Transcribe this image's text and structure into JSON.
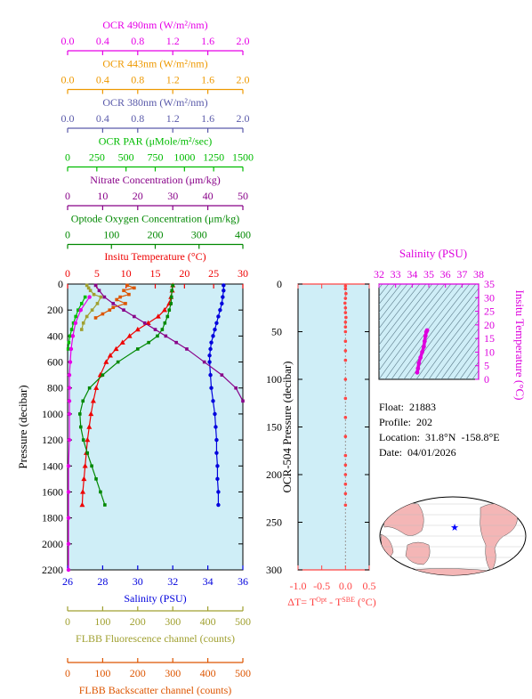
{
  "colors": {
    "panel_bg": "#cfeef7",
    "ocr490": "#e600e6",
    "ocr443": "#ee9900",
    "ocr380": "#5a5aaa",
    "par": "#00bb00",
    "nitrate": "#880088",
    "oxygen": "#008800",
    "temperature": "#ee0000",
    "salinity": "#0000dd",
    "flbb_fluor": "#a0a030",
    "flbb_backscatter": "#dd5500",
    "ts_axis": "#dd00dd",
    "delta_t": "#ff4444",
    "land": "#f4b6b6",
    "ocean": "#ffffff",
    "float_marker": "#0000ff"
  },
  "info": {
    "float": "Float:  21883",
    "profile": "Profile:  202",
    "location": "Location:  31.8°N  -158.8°E",
    "date": "Date:  04/01/2026"
  },
  "chart_data": [
    {
      "type": "line",
      "panel": "main-profile",
      "ylabel": "Pressure (decibar)",
      "ylim": [
        2200,
        0
      ],
      "yticks": [
        0,
        200,
        400,
        600,
        800,
        1000,
        1200,
        1400,
        1600,
        1800,
        2000,
        2200
      ],
      "axes": [
        {
          "id": "ocr490",
          "side": "top",
          "row": 0,
          "label": "OCR 490nm (W/m²/nm)",
          "lim": [
            0,
            2
          ],
          "ticks": [
            "0.0",
            "0.4",
            "0.8",
            "1.2",
            "1.6",
            "2.0"
          ]
        },
        {
          "id": "ocr443",
          "side": "top",
          "row": 1,
          "label": "OCR 443nm (W/m²/nm)",
          "lim": [
            0,
            2
          ],
          "ticks": [
            "0.0",
            "0.4",
            "0.8",
            "1.2",
            "1.6",
            "2.0"
          ]
        },
        {
          "id": "ocr380",
          "side": "top",
          "row": 2,
          "label": "OCR 380nm (W/m²/nm)",
          "lim": [
            0,
            2
          ],
          "ticks": [
            "0.0",
            "0.4",
            "0.8",
            "1.2",
            "1.6",
            "2.0"
          ]
        },
        {
          "id": "par",
          "side": "top",
          "row": 3,
          "label": "OCR PAR (μMole/m²/sec)",
          "lim": [
            0,
            1500
          ],
          "ticks": [
            "0",
            "250",
            "500",
            "750",
            "1000",
            "1250",
            "1500"
          ]
        },
        {
          "id": "nitrate",
          "side": "top",
          "row": 4,
          "label": "Nitrate Concentration (μm/kg)",
          "lim": [
            0,
            50
          ],
          "ticks": [
            "0",
            "10",
            "20",
            "30",
            "40",
            "50"
          ]
        },
        {
          "id": "oxygen",
          "side": "top",
          "row": 5,
          "label": "Optode Oxygen Concentration (μm/kg)",
          "lim": [
            0,
            400
          ],
          "ticks": [
            "0",
            "100",
            "200",
            "300",
            "400"
          ]
        },
        {
          "id": "temperature",
          "side": "top",
          "row": 6,
          "label": "Insitu Temperature (°C)",
          "lim": [
            0,
            30
          ],
          "ticks": [
            "0",
            "5",
            "10",
            "15",
            "20",
            "25",
            "30"
          ]
        },
        {
          "id": "salinity",
          "side": "bottom",
          "row": 0,
          "label": "Salinity (PSU)",
          "lim": [
            26,
            36
          ],
          "ticks": [
            "26",
            "28",
            "30",
            "32",
            "34",
            "36"
          ]
        },
        {
          "id": "flbb_fluor",
          "side": "bottom",
          "row": 1,
          "label": "FLBB Fluorescence channel (counts)",
          "lim": [
            0,
            500
          ],
          "ticks": [
            "0",
            "100",
            "200",
            "300",
            "400",
            "500"
          ]
        },
        {
          "id": "flbb_backscatter",
          "side": "bottom",
          "row": 2,
          "label": "FLBB Backscatter channel (counts)",
          "lim": [
            0,
            500
          ],
          "ticks": [
            "0",
            "100",
            "200",
            "300",
            "400",
            "500"
          ]
        }
      ],
      "series": [
        {
          "axis": "temperature",
          "marker": "triangle",
          "p": [
            10,
            50,
            100,
            150,
            200,
            250,
            300,
            350,
            400,
            450,
            500,
            550,
            600,
            700,
            800,
            900,
            1000,
            1100,
            1200,
            1300,
            1400,
            1500,
            1600,
            1700
          ],
          "values": [
            18.0,
            17.9,
            17.7,
            17.4,
            16.6,
            15.5,
            13.8,
            12.0,
            10.6,
            9.4,
            8.3,
            7.3,
            6.6,
            5.6,
            4.9,
            4.4,
            4.0,
            3.7,
            3.4,
            3.2,
            3.0,
            2.8,
            2.6,
            2.5
          ]
        },
        {
          "axis": "salinity",
          "marker": "circle",
          "p": [
            10,
            50,
            100,
            150,
            200,
            250,
            300,
            350,
            400,
            450,
            500,
            550,
            600,
            700,
            800,
            900,
            1000,
            1100,
            1200,
            1300,
            1400,
            1500,
            1600,
            1700
          ],
          "values": [
            34.9,
            34.9,
            34.85,
            34.8,
            34.7,
            34.6,
            34.5,
            34.4,
            34.3,
            34.2,
            34.15,
            34.1,
            34.1,
            34.15,
            34.2,
            34.3,
            34.4,
            34.45,
            34.5,
            34.5,
            34.55,
            34.55,
            34.6,
            34.6
          ]
        },
        {
          "axis": "oxygen",
          "marker": "square",
          "p": [
            10,
            50,
            100,
            150,
            200,
            250,
            300,
            350,
            400,
            450,
            500,
            600,
            700,
            800,
            900,
            1000,
            1100,
            1200,
            1300,
            1400,
            1500,
            1600,
            1700
          ],
          "values": [
            240,
            238,
            237,
            236,
            232,
            228,
            222,
            216,
            205,
            185,
            160,
            115,
            80,
            50,
            35,
            28,
            30,
            36,
            45,
            55,
            65,
            75,
            85
          ]
        },
        {
          "axis": "nitrate",
          "marker": "square",
          "p": [
            10,
            50,
            100,
            150,
            200,
            250,
            300,
            350,
            400,
            450,
            500,
            600,
            700,
            800,
            900
          ],
          "values": [
            8,
            9,
            10.5,
            13,
            16,
            19,
            22,
            25,
            28,
            31,
            34,
            39,
            44,
            48,
            50
          ]
        },
        {
          "axis": "flbb_backscatter",
          "marker": "square",
          "p": [
            10,
            30,
            50,
            80,
            100,
            120,
            150,
            180,
            200,
            230,
            260
          ],
          "values": [
            170,
            190,
            160,
            175,
            150,
            140,
            165,
            130,
            120,
            100,
            80
          ]
        },
        {
          "axis": "flbb_fluor",
          "marker": "square",
          "p": [
            10,
            30,
            50,
            80,
            100,
            150,
            200,
            250,
            300,
            350
          ],
          "values": [
            55,
            60,
            65,
            75,
            95,
            85,
            70,
            55,
            45,
            40
          ]
        },
        {
          "axis": "par",
          "marker": "square",
          "p": [
            100,
            150,
            200,
            250,
            300,
            350,
            400,
            450,
            500
          ],
          "values": [
            150,
            120,
            90,
            70,
            50,
            35,
            20,
            10,
            5
          ]
        },
        {
          "axis": "ocr490",
          "marker": "circle",
          "p": [
            100,
            200,
            300,
            400,
            500,
            600,
            700,
            800,
            900,
            1000,
            1200,
            1400,
            1600,
            1800,
            2000,
            2200
          ],
          "values": [
            0.25,
            0.15,
            0.09,
            0.06,
            0.04,
            0.03,
            0.02,
            0.02,
            0.02,
            0.02,
            0.02,
            0.01,
            0.01,
            0.01,
            0.01,
            0.01
          ]
        }
      ]
    },
    {
      "type": "scatter",
      "panel": "delta-t",
      "ylabel": "OCR-504 Pressure (decibar)",
      "xlabel": "ΔT= T",
      "xlabel_sup1": "Opt",
      "xlabel_mid": " - T",
      "xlabel_sup2": "SBE",
      "xlabel_end": " (°C)",
      "xlim": [
        -1.0,
        0.5
      ],
      "ylim": [
        300,
        0
      ],
      "xticks": [
        "-1.0",
        "-0.5",
        "0.0",
        "0.5"
      ],
      "yticks": [
        "0",
        "50",
        "100",
        "150",
        "200",
        "250",
        "300"
      ],
      "x": [
        0.0,
        0.0,
        0.01,
        0.0,
        -0.01,
        0.0,
        0.0,
        0.01,
        0.0,
        0.0,
        0.0,
        0.0,
        0.0,
        0.0,
        0.0,
        0.0,
        0.0,
        0.0,
        0.0,
        0.0,
        0.0,
        0.0,
        0.0,
        0.0
      ],
      "y": [
        2,
        5,
        10,
        15,
        20,
        25,
        30,
        35,
        40,
        45,
        50,
        60,
        70,
        80,
        100,
        120,
        140,
        160,
        180,
        190,
        200,
        210,
        220,
        232
      ]
    },
    {
      "type": "line",
      "panel": "ts-diagram",
      "xlabel": "Salinity (PSU)",
      "ylabel": "Insitu Temperature (°C)",
      "xlim": [
        32,
        38
      ],
      "ylim": [
        0,
        35
      ],
      "xticks": [
        "32",
        "33",
        "34",
        "35",
        "36",
        "37",
        "38"
      ],
      "yticks": [
        "0",
        "5",
        "10",
        "15",
        "20",
        "25",
        "30",
        "35"
      ],
      "x": [
        34.3,
        34.35,
        34.4,
        34.5,
        34.6,
        34.7,
        34.75,
        34.8,
        34.85,
        34.9
      ],
      "y": [
        2.5,
        4.0,
        6.0,
        8.0,
        10.0,
        12.0,
        14.0,
        16.0,
        17.4,
        18.0
      ]
    }
  ]
}
